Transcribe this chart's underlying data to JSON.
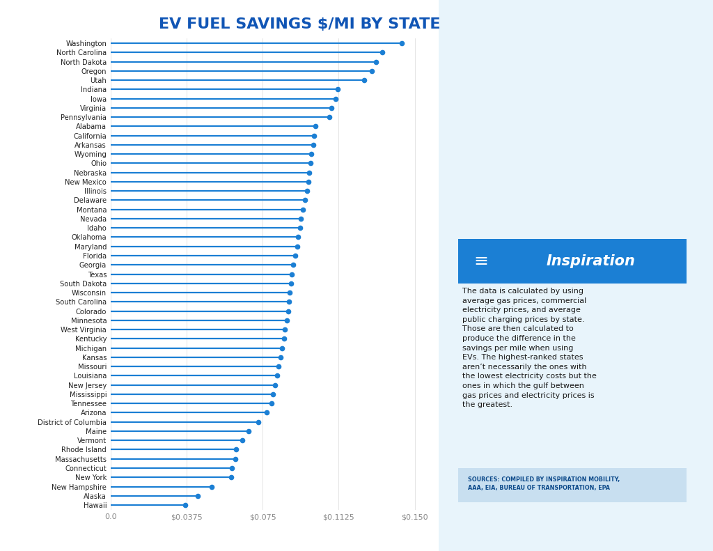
{
  "title": "EV FUEL SAVINGS $/MI BY STATE",
  "states": [
    "Washington",
    "North Carolina",
    "North Dakota",
    "Oregon",
    "Utah",
    "Indiana",
    "Iowa",
    "Virginia",
    "Pennsylvania",
    "Alabama",
    "California",
    "Arkansas",
    "Wyoming",
    "Ohio",
    "Nebraska",
    "New Mexico",
    "Illinois",
    "Delaware",
    "Montana",
    "Nevada",
    "Idaho",
    "Oklahoma",
    "Maryland",
    "Florida",
    "Georgia",
    "Texas",
    "South Dakota",
    "Wisconsin",
    "South Carolina",
    "Colorado",
    "Minnesota",
    "West Virginia",
    "Kentucky",
    "Michigan",
    "Kansas",
    "Missouri",
    "Louisiana",
    "New Jersey",
    "Mississippi",
    "Tennessee",
    "Arizona",
    "District of Columbia",
    "Maine",
    "Vermont",
    "Rhode Island",
    "Massachusetts",
    "Connecticut",
    "New York",
    "New Hampshire",
    "Alaska",
    "Hawaii"
  ],
  "values": [
    0.1435,
    0.134,
    0.131,
    0.129,
    0.125,
    0.112,
    0.111,
    0.109,
    0.108,
    0.101,
    0.1005,
    0.1,
    0.099,
    0.0985,
    0.098,
    0.0975,
    0.097,
    0.096,
    0.095,
    0.094,
    0.0935,
    0.0925,
    0.092,
    0.091,
    0.09,
    0.0895,
    0.089,
    0.0885,
    0.088,
    0.0875,
    0.087,
    0.086,
    0.0855,
    0.0845,
    0.084,
    0.083,
    0.082,
    0.081,
    0.08,
    0.0795,
    0.077,
    0.073,
    0.068,
    0.065,
    0.062,
    0.0615,
    0.06,
    0.0595,
    0.05,
    0.043,
    0.037
  ],
  "line_color": "#1B7FD4",
  "dot_color": "#1B7FD4",
  "bg_color": "#FFFFFF",
  "title_color": "#1055B5",
  "grid_color": "#E0E0E0",
  "right_bg_color": "#E8F4FB",
  "xlim": [
    0,
    0.16
  ],
  "xticks": [
    0.0,
    0.0375,
    0.075,
    0.1125,
    0.15
  ],
  "xtick_labels": [
    "0.0",
    "$0.0375",
    "$0.075",
    "$0.1125",
    "$0.150"
  ],
  "inspiration_box_color": "#1B7FD4",
  "annotation_text": "The data is calculated by using\naverage gas prices, commercial\nelectricity prices, and average\npublic charging prices by state.\nThose are then calculated to\nproduce the difference in the\nsavings per mile when using\nEVs. The highest-ranked states\naren’t necessarily the ones with\nthe lowest electricity costs but the\nones in which the gulf between\ngas prices and electricity prices is\nthe greatest.",
  "sources_text": "SOURCES: COMPILED BY INSPIRATION MOBILITY,\nAAA, EIA, BUREAU OF TRANSPORTATION, EPA"
}
